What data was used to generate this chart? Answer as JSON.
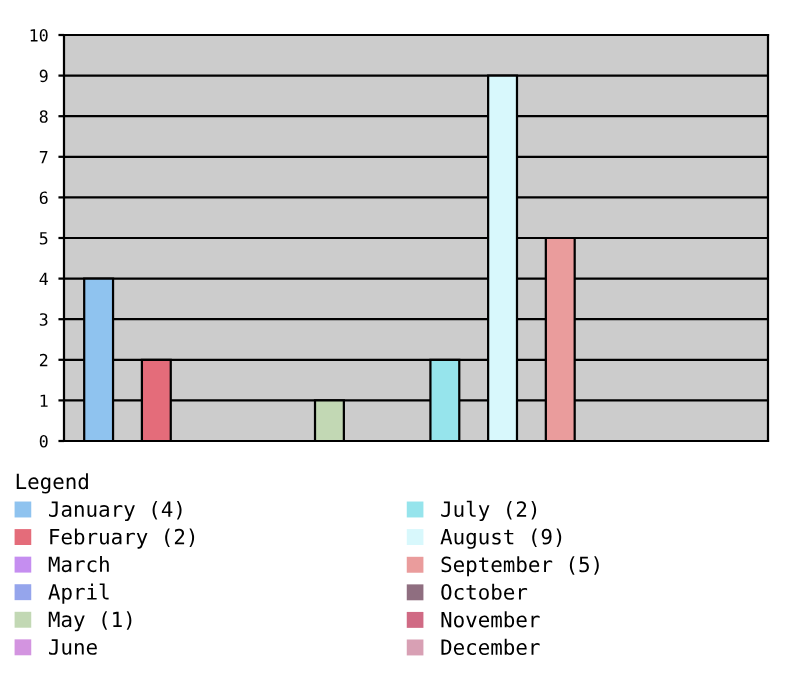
{
  "chart_data": {
    "type": "bar",
    "legend_title": "Legend",
    "categories": [
      null,
      null,
      null,
      null,
      null,
      null,
      null,
      null,
      null,
      null,
      null,
      null
    ],
    "series": [
      {
        "name": "January (4)",
        "color": "#8fc3ef",
        "values": [
          4,
          null,
          null,
          null,
          null,
          null,
          null,
          null,
          null,
          null,
          null,
          null
        ]
      },
      {
        "name": "February (2)",
        "color": "#e46c7a",
        "values": [
          null,
          2,
          null,
          null,
          null,
          null,
          null,
          null,
          null,
          null,
          null,
          null
        ]
      },
      {
        "name": "March",
        "color": "#c58ef0",
        "values": [
          null,
          null,
          0,
          null,
          null,
          null,
          null,
          null,
          null,
          null,
          null,
          null
        ]
      },
      {
        "name": "April",
        "color": "#95a5ec",
        "values": [
          null,
          null,
          null,
          0,
          null,
          null,
          null,
          null,
          null,
          null,
          null,
          null
        ]
      },
      {
        "name": "May (1)",
        "color": "#c2d8b4",
        "values": [
          null,
          null,
          null,
          null,
          1,
          null,
          null,
          null,
          null,
          null,
          null,
          null
        ]
      },
      {
        "name": "June",
        "color": "#d394e0",
        "values": [
          null,
          null,
          null,
          null,
          null,
          0,
          null,
          null,
          null,
          null,
          null,
          null
        ]
      },
      {
        "name": "July (2)",
        "color": "#96e4ec",
        "values": [
          null,
          null,
          null,
          null,
          null,
          null,
          2,
          null,
          null,
          null,
          null,
          null
        ]
      },
      {
        "name": "August (9)",
        "color": "#d8f8fc",
        "values": [
          null,
          null,
          null,
          null,
          null,
          null,
          null,
          9,
          null,
          null,
          null,
          null
        ]
      },
      {
        "name": "September (5)",
        "color": "#ea9c9c",
        "values": [
          null,
          null,
          null,
          null,
          null,
          null,
          null,
          null,
          5,
          null,
          null,
          null
        ]
      },
      {
        "name": "October",
        "color": "#8f6e80",
        "values": [
          null,
          null,
          null,
          null,
          null,
          null,
          null,
          null,
          null,
          0,
          null,
          null
        ]
      },
      {
        "name": "November",
        "color": "#d06a84",
        "values": [
          null,
          null,
          null,
          null,
          null,
          null,
          null,
          null,
          null,
          null,
          0,
          null
        ]
      },
      {
        "name": "December",
        "color": "#d8a0b4",
        "values": [
          null,
          null,
          null,
          null,
          null,
          null,
          null,
          null,
          null,
          null,
          null,
          0
        ]
      }
    ],
    "ylim": [
      0,
      10
    ],
    "yticks": [
      0,
      1,
      2,
      3,
      4,
      5,
      6,
      7,
      8,
      9,
      10
    ],
    "grid": "y",
    "legend": "bottom",
    "tick_labels": "y"
  }
}
